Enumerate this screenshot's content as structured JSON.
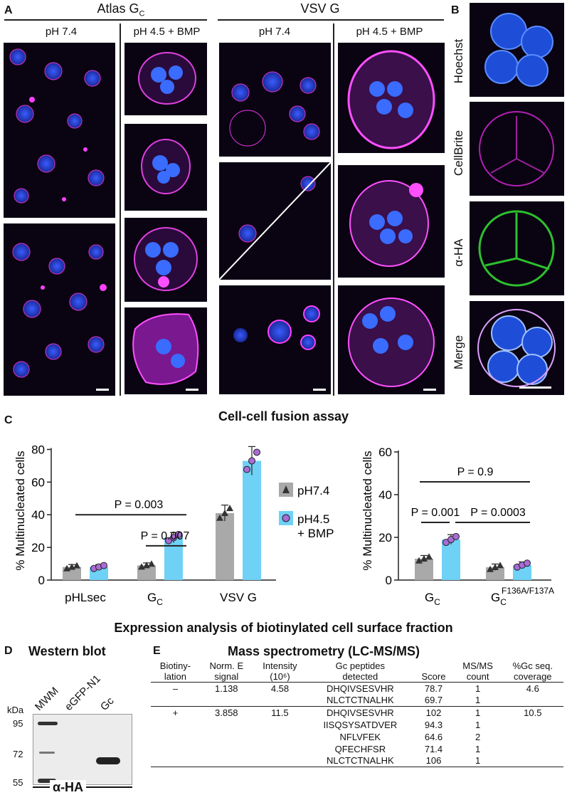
{
  "panelA": {
    "label": "A",
    "atlas": "Atlas G",
    "atlas_sub": "C",
    "vsv": "VSV G",
    "ph74": "pH 7.4",
    "ph45": "pH 4.5 + BMP"
  },
  "panelB": {
    "label": "B",
    "rows": [
      "Hoechst",
      "CellBrite",
      "α-HA",
      "Merge"
    ]
  },
  "panelC": {
    "label": "C",
    "title": "Cell-cell fusion assay",
    "ylabel": "% Multinucleated cells",
    "legend": [
      "pH7.4",
      "pH4.5",
      "+ BMP"
    ],
    "left_x": [
      "pHLsec",
      "G",
      "VSV G"
    ],
    "left_x_sub": "C",
    "left_p": [
      "P = 0.003",
      "P = 0.007"
    ],
    "right_x": [
      "G",
      "G"
    ],
    "right_x_sub": "C",
    "right_x_sup": "F136A/F137A",
    "right_p": [
      "P = 0.9",
      "P = 0.001",
      "P = 0.0003"
    ],
    "p_italic": "P",
    "left_yticks": [
      "0",
      "20",
      "40",
      "60",
      "80"
    ],
    "right_yticks": [
      "0",
      "20",
      "40",
      "60"
    ]
  },
  "chart_data": [
    {
      "type": "bar",
      "title": "Cell-cell fusion assay",
      "ylabel": "% Multinucleated cells",
      "ylim": [
        0,
        85
      ],
      "categories": [
        "pHLsec",
        "GC",
        "VSV G"
      ],
      "series": [
        {
          "name": "pH7.4",
          "values": [
            8,
            9,
            41
          ]
        },
        {
          "name": "pH4.5 + BMP",
          "values": [
            8,
            26,
            73
          ]
        }
      ]
    },
    {
      "type": "bar",
      "ylabel": "% Multinucleated cells",
      "ylim": [
        0,
        65
      ],
      "categories": [
        "GC",
        "GC F136A/F137A"
      ],
      "series": [
        {
          "name": "pH7.4",
          "values": [
            10,
            6
          ]
        },
        {
          "name": "pH4.5 + BMP",
          "values": [
            19,
            7
          ]
        }
      ]
    }
  ],
  "expr_title": "Expression analysis of biotinylated cell surface fraction",
  "panelD": {
    "label": "D",
    "title": "Western blot",
    "kda": "kDa",
    "markers": [
      "95",
      "72",
      "55"
    ],
    "lanes": [
      "MWM",
      "eGFP-N1",
      "Gc"
    ],
    "footer": "α-HA"
  },
  "panelE": {
    "label": "E",
    "title": "Mass spectrometry (LC-MS/MS)",
    "headers": [
      [
        "Biotiny-",
        "lation"
      ],
      [
        "Norm. E",
        "signal"
      ],
      [
        "Intensity",
        "(10⁶)"
      ],
      [
        "Gc peptides",
        "detected"
      ],
      [
        "",
        "Score"
      ],
      [
        "MS/MS",
        "count"
      ],
      [
        "%Gc seq.",
        "coverage"
      ]
    ],
    "rows": [
      [
        "–",
        "1.138",
        "4.58",
        "DHQIVSESVHR",
        "78.7",
        "1",
        "4.6"
      ],
      [
        "",
        "",
        "",
        "NLCTCTNALHK",
        "69.7",
        "1",
        ""
      ],
      [
        "+",
        "3.858",
        "11.5",
        "DHQIVSESVHR",
        "102",
        "1",
        "10.5"
      ],
      [
        "",
        "",
        "",
        "IISQSYSATDVER",
        "94.3",
        "1",
        ""
      ],
      [
        "",
        "",
        "",
        "NFLVFEK",
        "64.6",
        "2",
        ""
      ],
      [
        "",
        "",
        "",
        "QFECHFSR",
        "71.4",
        "1",
        ""
      ],
      [
        "",
        "",
        "",
        "NLCTCTNALHK",
        "106",
        "1",
        ""
      ]
    ]
  }
}
